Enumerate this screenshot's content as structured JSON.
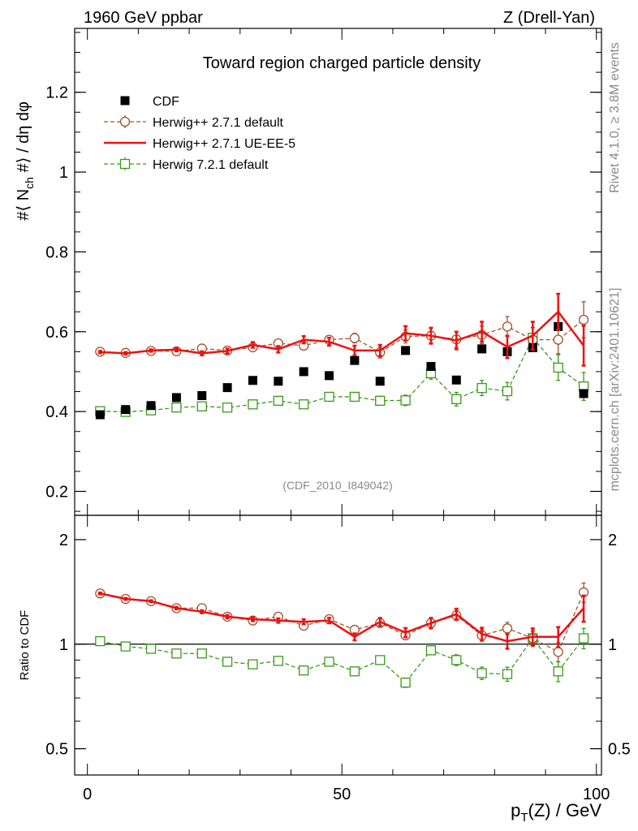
{
  "header": {
    "left": "1960 GeV ppbar",
    "right": "Z (Drell-Yan)"
  },
  "side_labels": {
    "rivet": "Rivet 4.1.0, ≥ 3.8M events",
    "mcplots": "mcplots.cern.ch [arXiv:2401.10621]"
  },
  "colors": {
    "cdf": "#000000",
    "herwig_default": "#a0522d",
    "herwig_ueee5": "#ee1111",
    "herwig7": "#3a9a1a",
    "grey_text": "#8a8a8a"
  },
  "chart_data": [
    {
      "panel": "main",
      "type": "scatter",
      "title": "Toward region charged particle density",
      "ylabel": "#⟨ N_ch #⟩ / dη dφ",
      "xlabel": "p_T(Z) / GeV",
      "ylim": [
        0.14,
        1.36
      ],
      "xlim": [
        -2.5,
        101
      ],
      "yticks": [
        0.2,
        0.4,
        0.6,
        0.8,
        1,
        1.2
      ],
      "ytick_labels": [
        "0.2",
        "0.4",
        "0.6",
        "0.8",
        "1",
        "1.2"
      ],
      "watermark": "(CDF_2010_I849042)",
      "x": [
        2.5,
        7.5,
        12.5,
        17.5,
        22.5,
        27.5,
        32.5,
        37.5,
        42.5,
        47.5,
        52.5,
        57.5,
        62.5,
        67.5,
        72.5,
        77.5,
        82.5,
        87.5,
        92.5,
        97.5
      ],
      "legend": [
        {
          "key": "cdf",
          "label": "CDF"
        },
        {
          "key": "herwig_default",
          "label": "Herwig++ 2.7.1 default"
        },
        {
          "key": "herwig_ueee5",
          "label": "Herwig++ 2.7.1 UE-EE-5"
        },
        {
          "key": "herwig7",
          "label": "Herwig 7.2.1 default"
        }
      ],
      "series": [
        {
          "name": "CDF",
          "key": "cdf",
          "style": "square-filled",
          "values": [
            0.392,
            0.405,
            0.415,
            0.435,
            0.44,
            0.46,
            0.478,
            0.476,
            0.5,
            0.49,
            0.528,
            0.476,
            0.553,
            0.513,
            0.479,
            0.557,
            0.55,
            0.56,
            0.613,
            0.445
          ]
        },
        {
          "name": "Herwig++ 2.7.1 default",
          "key": "herwig_default",
          "style": "circle-open-dashed",
          "values": [
            0.55,
            0.547,
            0.552,
            0.551,
            0.558,
            0.553,
            0.561,
            0.571,
            0.565,
            0.58,
            0.584,
            0.548,
            0.588,
            0.59,
            0.581,
            0.592,
            0.613,
            0.58,
            0.58,
            0.63
          ],
          "errors": [
            0.003,
            0.003,
            0.003,
            0.004,
            0.005,
            0.005,
            0.006,
            0.007,
            0.008,
            0.01,
            0.012,
            0.014,
            0.016,
            0.018,
            0.02,
            0.022,
            0.025,
            0.03,
            0.035,
            0.045
          ]
        },
        {
          "name": "Herwig++ 2.7.1 UE-EE-5",
          "key": "herwig_ueee5",
          "style": "line",
          "values": [
            0.549,
            0.546,
            0.553,
            0.555,
            0.546,
            0.552,
            0.567,
            0.556,
            0.58,
            0.575,
            0.553,
            0.553,
            0.596,
            0.59,
            0.578,
            0.6,
            0.562,
            0.59,
            0.65,
            0.565
          ],
          "errors": [
            0.003,
            0.003,
            0.003,
            0.004,
            0.005,
            0.006,
            0.007,
            0.008,
            0.009,
            0.01,
            0.012,
            0.014,
            0.018,
            0.02,
            0.022,
            0.025,
            0.028,
            0.035,
            0.045,
            0.05
          ]
        },
        {
          "name": "Herwig 7.2.1 default",
          "key": "herwig7",
          "style": "square-open-dashed",
          "values": [
            0.401,
            0.399,
            0.403,
            0.41,
            0.413,
            0.41,
            0.418,
            0.427,
            0.418,
            0.437,
            0.437,
            0.427,
            0.428,
            0.496,
            0.431,
            0.459,
            0.451,
            0.585,
            0.51,
            0.463
          ],
          "errors": [
            0.003,
            0.003,
            0.003,
            0.004,
            0.005,
            0.005,
            0.006,
            0.007,
            0.008,
            0.009,
            0.01,
            0.011,
            0.013,
            0.015,
            0.017,
            0.019,
            0.022,
            0.026,
            0.032,
            0.035
          ]
        }
      ]
    },
    {
      "panel": "ratio",
      "type": "scatter",
      "ylabel": "Ratio to CDF",
      "xlabel": "p_T(Z) / GeV",
      "yscale": "log",
      "ylim": [
        0.42,
        2.35
      ],
      "xlim": [
        -2.5,
        101
      ],
      "yticks": [
        0.5,
        1,
        2
      ],
      "ytick_labels": [
        "0.5",
        "1",
        "2"
      ],
      "xticks": [
        0,
        50,
        100
      ],
      "xtick_labels": [
        "0",
        "50",
        "100"
      ],
      "x": [
        2.5,
        7.5,
        12.5,
        17.5,
        22.5,
        27.5,
        32.5,
        37.5,
        42.5,
        47.5,
        52.5,
        57.5,
        62.5,
        67.5,
        72.5,
        77.5,
        82.5,
        87.5,
        92.5,
        97.5
      ],
      "series": [
        {
          "name": "Herwig++ 2.7.1 default",
          "key": "herwig_default",
          "style": "circle-open-dashed",
          "values": [
            1.4,
            1.35,
            1.33,
            1.27,
            1.27,
            1.2,
            1.17,
            1.2,
            1.13,
            1.18,
            1.1,
            1.15,
            1.06,
            1.15,
            1.21,
            1.06,
            1.11,
            1.04,
            0.95,
            1.41
          ],
          "errors": [
            0.008,
            0.008,
            0.008,
            0.01,
            0.012,
            0.012,
            0.013,
            0.015,
            0.017,
            0.02,
            0.024,
            0.03,
            0.03,
            0.035,
            0.04,
            0.04,
            0.045,
            0.055,
            0.06,
            0.09
          ]
        },
        {
          "name": "Herwig++ 2.7.1 UE-EE-5",
          "key": "herwig_ueee5",
          "style": "line",
          "values": [
            1.4,
            1.35,
            1.33,
            1.27,
            1.24,
            1.2,
            1.18,
            1.17,
            1.16,
            1.17,
            1.05,
            1.16,
            1.08,
            1.15,
            1.22,
            1.07,
            1.02,
            1.05,
            1.05,
            1.27
          ],
          "errors": [
            0.008,
            0.008,
            0.008,
            0.01,
            0.012,
            0.013,
            0.015,
            0.017,
            0.019,
            0.021,
            0.024,
            0.03,
            0.033,
            0.04,
            0.045,
            0.045,
            0.05,
            0.06,
            0.07,
            0.11
          ]
        },
        {
          "name": "Herwig 7.2.1 default",
          "key": "herwig7",
          "style": "square-open-dashed",
          "values": [
            1.02,
            0.985,
            0.97,
            0.94,
            0.94,
            0.89,
            0.875,
            0.895,
            0.84,
            0.89,
            0.835,
            0.9,
            0.775,
            0.96,
            0.9,
            0.825,
            0.82,
            1.04,
            0.835,
            1.04
          ],
          "errors": [
            0.006,
            0.006,
            0.006,
            0.008,
            0.01,
            0.01,
            0.012,
            0.014,
            0.016,
            0.018,
            0.02,
            0.022,
            0.024,
            0.028,
            0.032,
            0.034,
            0.038,
            0.045,
            0.055,
            0.07
          ]
        }
      ]
    }
  ]
}
